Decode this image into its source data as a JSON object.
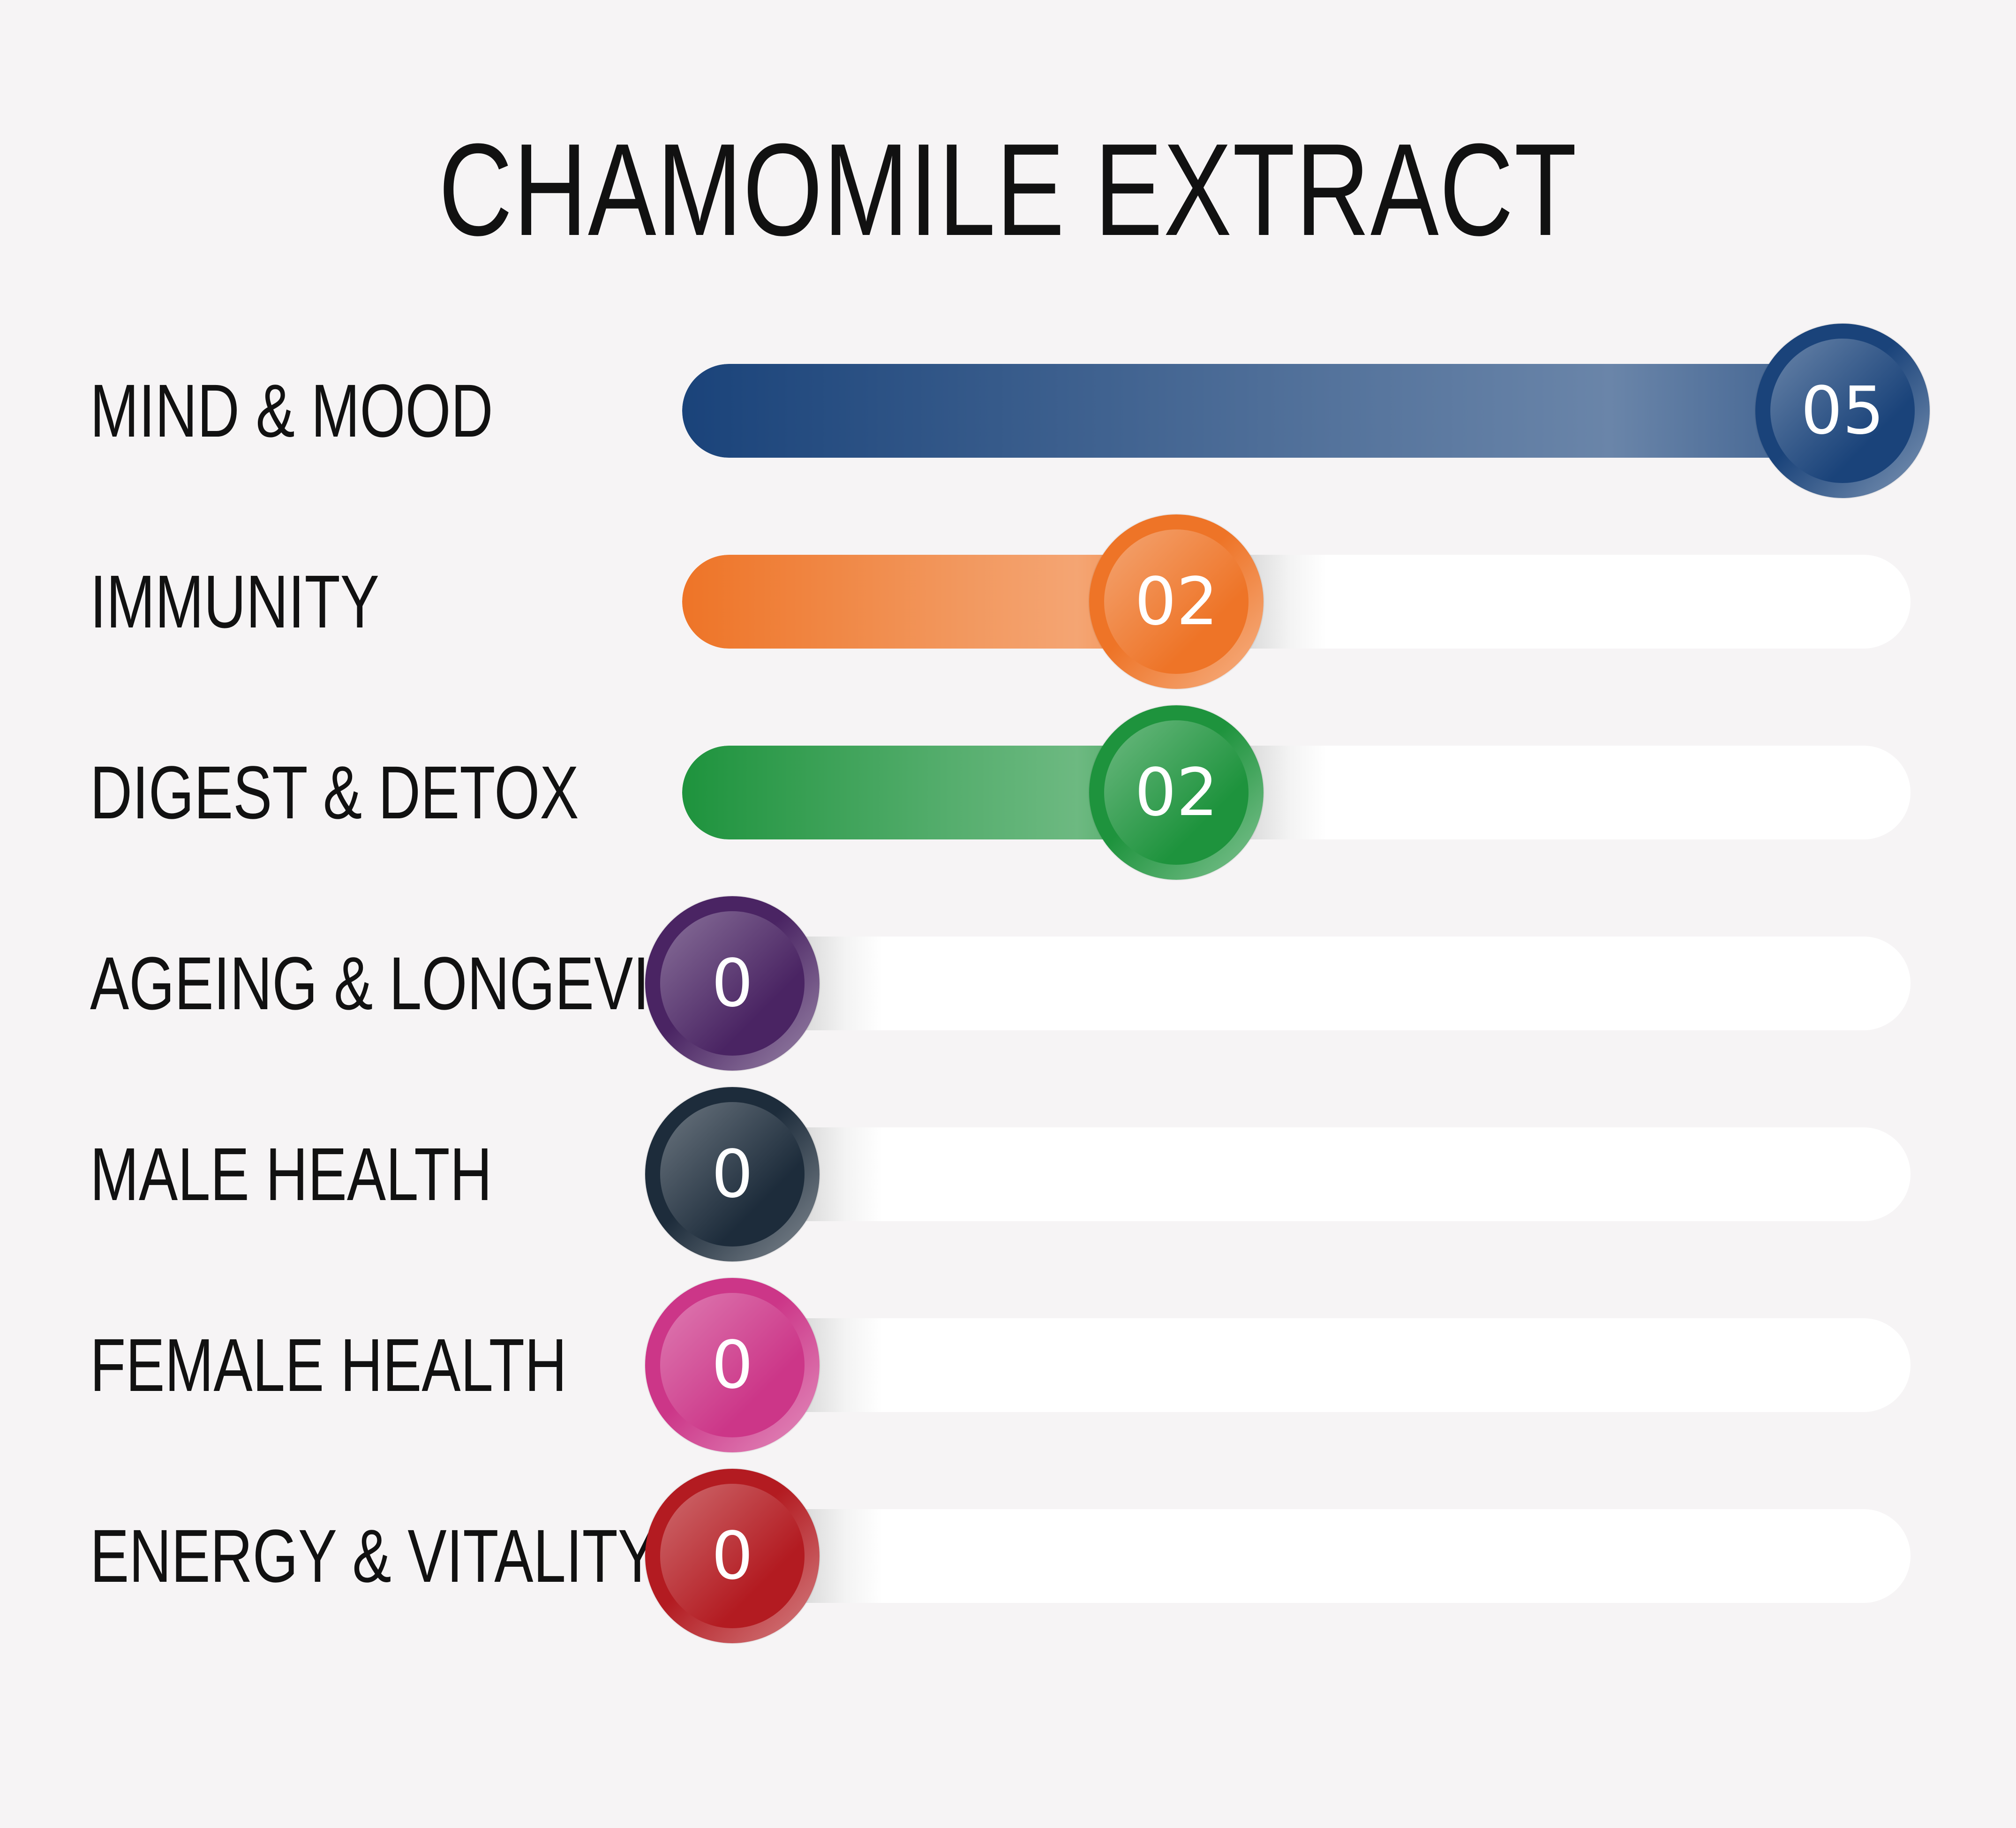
{
  "title": "CHAMOMILE EXTRACT",
  "chart_data": {
    "type": "bar",
    "orientation": "horizontal",
    "title": "CHAMOMILE EXTRACT",
    "xlim": [
      0,
      5
    ],
    "grid": false,
    "legend": "none",
    "categories": [
      "MIND & MOOD",
      "IMMUNITY",
      "DIGEST & DETOX",
      "AGEING & LONGEVITY",
      "MALE HEALTH",
      "FEMALE HEALTH",
      "ENERGY & VITALITY"
    ],
    "values": [
      5,
      2,
      2,
      0,
      0,
      0,
      0
    ],
    "value_labels": [
      "05",
      "02",
      "02",
      "0",
      "0",
      "0",
      "0"
    ],
    "colors": [
      "#1a437a",
      "#ee7427",
      "#1e933d",
      "#4a2463",
      "#1d2c3b",
      "#cc3688",
      "#b31b21"
    ]
  }
}
